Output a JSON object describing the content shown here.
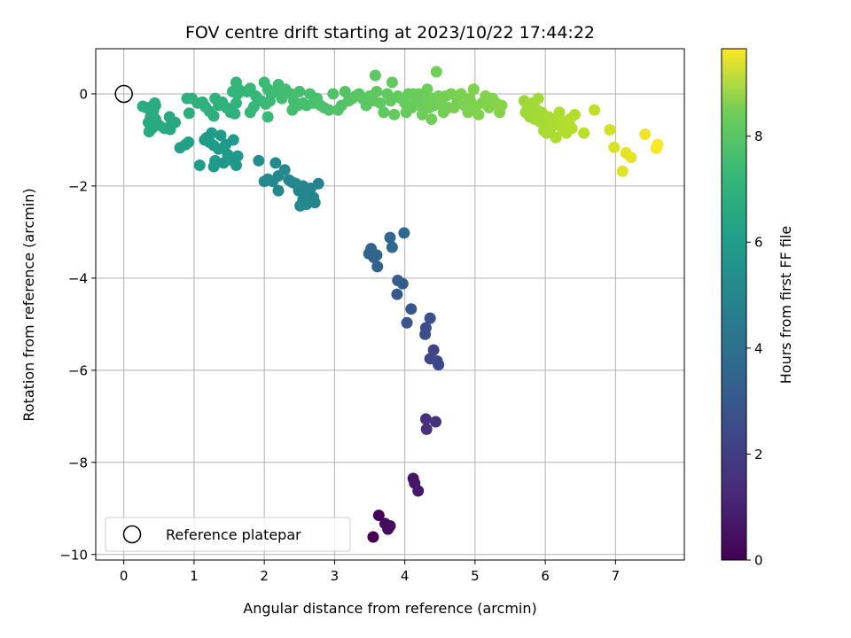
{
  "chart_data": {
    "type": "scatter",
    "title": "FOV centre drift starting at 2023/10/22 17:44:22",
    "xlabel": "Angular distance from reference (arcmin)",
    "ylabel": "Rotation from reference (arcmin)",
    "xlim": [
      -0.4,
      7.98
    ],
    "ylim": [
      -10.12,
      0.98
    ],
    "xticks": [
      0,
      1,
      2,
      3,
      4,
      5,
      6,
      7
    ],
    "yticks": [
      0,
      -2,
      -4,
      -6,
      -8,
      -10
    ],
    "grid": true,
    "legend": {
      "placement": "lower-left",
      "label": "Reference platepar"
    },
    "reference_point": {
      "x": 0,
      "y": 0
    },
    "colorbar": {
      "label": "Hours from first FF file",
      "min": 0,
      "max": 9.65,
      "ticks": [
        0,
        2,
        4,
        6,
        8
      ],
      "colormap": "viridis"
    },
    "points": [
      [
        3.55,
        -9.62,
        0.0
      ],
      [
        3.63,
        -9.15,
        0.15
      ],
      [
        3.72,
        -9.33,
        0.25
      ],
      [
        3.76,
        -9.45,
        0.3
      ],
      [
        3.79,
        -9.38,
        0.35
      ],
      [
        4.12,
        -8.35,
        0.55
      ],
      [
        4.14,
        -8.45,
        0.6
      ],
      [
        4.19,
        -8.62,
        0.65
      ],
      [
        4.3,
        -7.06,
        1.3
      ],
      [
        4.31,
        -7.28,
        1.35
      ],
      [
        4.44,
        -7.12,
        1.4
      ],
      [
        4.36,
        -5.75,
        2.0
      ],
      [
        4.41,
        -5.56,
        1.95
      ],
      [
        4.46,
        -5.8,
        2.05
      ],
      [
        4.48,
        -5.88,
        2.1
      ],
      [
        4.3,
        -5.08,
        2.3
      ],
      [
        4.29,
        -5.22,
        2.35
      ],
      [
        4.36,
        -4.87,
        2.4
      ],
      [
        4.03,
        -4.97,
        2.55
      ],
      [
        4.09,
        -4.67,
        2.6
      ],
      [
        3.89,
        -4.35,
        2.7
      ],
      [
        3.9,
        -4.05,
        2.75
      ],
      [
        3.97,
        -4.12,
        2.8
      ],
      [
        3.49,
        -3.47,
        3.0
      ],
      [
        3.52,
        -3.36,
        3.05
      ],
      [
        3.56,
        -3.55,
        3.05
      ],
      [
        3.6,
        -3.5,
        3.1
      ],
      [
        3.61,
        -3.75,
        3.05
      ],
      [
        3.79,
        -3.12,
        3.15
      ],
      [
        3.82,
        -3.33,
        3.2
      ],
      [
        3.99,
        -3.02,
        3.2
      ],
      [
        2.49,
        -2.1,
        4.4
      ],
      [
        2.55,
        -2.3,
        4.45
      ],
      [
        2.6,
        -2.4,
        4.5
      ],
      [
        2.62,
        -2.15,
        4.45
      ],
      [
        2.66,
        -2.05,
        4.35
      ],
      [
        2.7,
        -2.25,
        4.4
      ],
      [
        2.72,
        -2.36,
        4.4
      ],
      [
        2.77,
        -1.95,
        4.3
      ],
      [
        2.55,
        -2.0,
        4.4
      ],
      [
        2.4,
        -1.92,
        4.4
      ],
      [
        2.35,
        -1.87,
        4.45
      ],
      [
        2.2,
        -1.78,
        4.55
      ],
      [
        2.12,
        -1.9,
        4.55
      ],
      [
        2.05,
        -1.85,
        4.6
      ],
      [
        2.0,
        -1.9,
        4.6
      ],
      [
        2.2,
        -2.1,
        4.55
      ],
      [
        2.16,
        -1.5,
        4.65
      ],
      [
        2.29,
        -1.65,
        4.6
      ],
      [
        2.45,
        -1.95,
        4.5
      ],
      [
        2.51,
        -2.43,
        4.5
      ],
      [
        1.92,
        -1.45,
        4.8
      ],
      [
        1.15,
        -1.0,
        5.3
      ],
      [
        1.22,
        -1.05,
        5.3
      ],
      [
        1.28,
        -1.12,
        5.25
      ],
      [
        1.35,
        -1.2,
        5.25
      ],
      [
        1.3,
        -1.45,
        5.2
      ],
      [
        1.42,
        -1.5,
        5.15
      ],
      [
        1.48,
        -1.32,
        5.2
      ],
      [
        1.55,
        -1.45,
        5.15
      ],
      [
        1.6,
        -1.55,
        5.1
      ],
      [
        1.62,
        -1.35,
        5.1
      ],
      [
        1.38,
        -0.9,
        5.3
      ],
      [
        1.28,
        -1.58,
        5.2
      ],
      [
        1.18,
        -0.95,
        5.35
      ],
      [
        1.08,
        -1.55,
        5.35
      ],
      [
        1.56,
        -1.0,
        5.2
      ],
      [
        0.92,
        -1.05,
        5.5
      ],
      [
        0.88,
        -1.1,
        5.5
      ],
      [
        0.8,
        -1.17,
        5.5
      ],
      [
        1.45,
        -1.1,
        5.25
      ],
      [
        1.25,
        -0.85,
        5.3
      ],
      [
        0.27,
        -0.27,
        5.9
      ],
      [
        0.32,
        -0.3,
        5.9
      ],
      [
        0.4,
        -0.28,
        5.92
      ],
      [
        0.45,
        -0.25,
        5.92
      ],
      [
        0.42,
        -0.37,
        5.9
      ],
      [
        0.38,
        -0.5,
        5.88
      ],
      [
        0.45,
        -0.55,
        5.88
      ],
      [
        0.35,
        -0.62,
        5.88
      ],
      [
        0.4,
        -0.75,
        5.85
      ],
      [
        0.5,
        -0.68,
        5.85
      ],
      [
        0.65,
        -0.5,
        5.8
      ],
      [
        0.68,
        -0.65,
        5.8
      ],
      [
        0.73,
        -0.62,
        5.8
      ],
      [
        0.66,
        -0.77,
        5.8
      ],
      [
        0.36,
        -0.82,
        5.85
      ],
      [
        0.44,
        -0.2,
        5.92
      ],
      [
        0.58,
        -0.75,
        5.82
      ],
      [
        0.9,
        -0.1,
        6.1
      ],
      [
        0.97,
        -0.1,
        6.12
      ],
      [
        0.93,
        -0.42,
        6.05
      ],
      [
        1.05,
        -0.2,
        6.15
      ],
      [
        1.12,
        -0.18,
        6.15
      ],
      [
        1.16,
        -0.28,
        6.15
      ],
      [
        1.22,
        -0.38,
        6.12
      ],
      [
        1.28,
        -0.48,
        6.1
      ],
      [
        1.35,
        -0.25,
        6.15
      ],
      [
        1.4,
        -0.18,
        6.2
      ],
      [
        1.46,
        -0.3,
        6.2
      ],
      [
        1.52,
        -0.4,
        6.2
      ],
      [
        1.3,
        -0.1,
        6.2
      ],
      [
        1.58,
        -0.43,
        6.18
      ],
      [
        1.6,
        -0.2,
        6.25
      ],
      [
        1.62,
        0.0,
        6.3
      ],
      [
        1.55,
        0.05,
        6.3
      ],
      [
        1.65,
        0.08,
        6.35
      ],
      [
        1.6,
        0.25,
        6.4
      ],
      [
        1.75,
        0.05,
        6.4
      ],
      [
        1.8,
        0.12,
        6.45
      ],
      [
        1.88,
        -0.05,
        6.45
      ],
      [
        1.8,
        -0.4,
        6.4
      ],
      [
        1.85,
        -0.28,
        6.42
      ],
      [
        1.95,
        -0.15,
        6.48
      ],
      [
        2.0,
        0.25,
        6.55
      ],
      [
        2.05,
        0.1,
        6.55
      ],
      [
        2.1,
        0.0,
        6.58
      ],
      [
        2.08,
        -0.15,
        6.55
      ],
      [
        2.15,
        0.05,
        6.6
      ],
      [
        2.2,
        0.2,
        6.62
      ],
      [
        2.05,
        -0.5,
        6.5
      ],
      [
        2.02,
        -0.22,
        6.55
      ],
      [
        2.25,
        -0.1,
        6.65
      ],
      [
        2.3,
        0.1,
        6.65
      ],
      [
        2.38,
        0.0,
        6.7
      ],
      [
        2.42,
        -0.15,
        6.72
      ],
      [
        2.5,
        0.05,
        6.75
      ],
      [
        2.55,
        -0.2,
        6.75
      ],
      [
        2.6,
        -0.25,
        6.78
      ],
      [
        2.48,
        -0.25,
        6.75
      ],
      [
        2.4,
        -0.35,
        6.72
      ],
      [
        2.65,
        0.0,
        6.8
      ],
      [
        2.7,
        -0.2,
        6.82
      ],
      [
        2.75,
        -0.1,
        6.85
      ],
      [
        2.8,
        -0.25,
        6.88
      ],
      [
        2.85,
        -0.3,
        6.9
      ],
      [
        2.92,
        -0.35,
        6.92
      ],
      [
        2.98,
        0.0,
        6.95
      ],
      [
        3.05,
        -0.35,
        6.98
      ],
      [
        3.1,
        -0.25,
        7.0
      ],
      [
        3.15,
        0.05,
        7.02
      ],
      [
        3.2,
        -0.15,
        7.05
      ],
      [
        3.25,
        -0.1,
        7.05
      ],
      [
        3.3,
        -0.05,
        7.08
      ],
      [
        3.35,
        0.0,
        7.1
      ],
      [
        3.4,
        -0.1,
        7.12
      ],
      [
        3.45,
        -0.25,
        7.14
      ],
      [
        3.5,
        -0.05,
        7.15
      ],
      [
        3.55,
        -0.15,
        7.18
      ],
      [
        3.58,
        0.4,
        7.2
      ],
      [
        3.6,
        0.05,
        7.2
      ],
      [
        3.65,
        -0.2,
        7.22
      ],
      [
        3.7,
        -0.4,
        7.22
      ],
      [
        3.75,
        0.0,
        7.25
      ],
      [
        3.8,
        -0.15,
        7.28
      ],
      [
        3.82,
        0.25,
        7.28
      ],
      [
        3.85,
        -0.45,
        7.3
      ],
      [
        3.9,
        -0.05,
        7.3
      ],
      [
        3.95,
        -0.1,
        7.32
      ],
      [
        4.0,
        -0.2,
        7.35
      ],
      [
        4.02,
        -0.4,
        7.35
      ],
      [
        4.05,
        0.0,
        7.38
      ],
      [
        4.1,
        -0.3,
        7.38
      ],
      [
        4.12,
        0.0,
        7.4
      ],
      [
        4.15,
        -0.1,
        7.4
      ],
      [
        4.2,
        0.0,
        7.42
      ],
      [
        4.22,
        -0.25,
        7.42
      ],
      [
        4.25,
        -0.45,
        7.45
      ],
      [
        4.3,
        -0.1,
        7.45
      ],
      [
        4.32,
        0.1,
        7.48
      ],
      [
        4.35,
        -0.3,
        7.48
      ],
      [
        4.38,
        -0.55,
        7.5
      ],
      [
        4.4,
        -0.1,
        7.5
      ],
      [
        4.42,
        -0.25,
        7.52
      ],
      [
        4.45,
        0.48,
        7.55
      ],
      [
        4.48,
        -0.05,
        7.55
      ],
      [
        4.52,
        -0.2,
        7.58
      ],
      [
        4.55,
        -0.4,
        7.58
      ],
      [
        4.58,
        -0.05,
        7.6
      ],
      [
        4.62,
        -0.3,
        7.6
      ],
      [
        4.66,
        0.0,
        7.62
      ],
      [
        4.7,
        -0.3,
        7.65
      ],
      [
        4.75,
        -0.15,
        7.65
      ],
      [
        4.8,
        0.0,
        7.68
      ],
      [
        4.85,
        -0.25,
        7.7
      ],
      [
        4.9,
        -0.4,
        7.7
      ],
      [
        4.92,
        -0.1,
        7.72
      ],
      [
        4.95,
        -0.2,
        7.72
      ],
      [
        4.98,
        0.1,
        7.75
      ],
      [
        5.0,
        -0.3,
        7.75
      ],
      [
        5.05,
        -0.45,
        7.78
      ],
      [
        5.1,
        -0.2,
        7.78
      ],
      [
        5.15,
        -0.05,
        7.8
      ],
      [
        5.2,
        -0.3,
        7.8
      ],
      [
        5.25,
        -0.1,
        7.82
      ],
      [
        5.3,
        -0.2,
        7.85
      ],
      [
        5.35,
        -0.4,
        7.85
      ],
      [
        5.38,
        -0.25,
        7.88
      ],
      [
        5.7,
        -0.15,
        8.2
      ],
      [
        5.72,
        -0.4,
        8.22
      ],
      [
        5.75,
        -0.25,
        8.22
      ],
      [
        5.78,
        -0.5,
        8.25
      ],
      [
        5.8,
        -0.3,
        8.25
      ],
      [
        5.82,
        -0.2,
        8.28
      ],
      [
        5.85,
        -0.55,
        8.28
      ],
      [
        5.88,
        -0.35,
        8.3
      ],
      [
        5.9,
        -0.1,
        8.3
      ],
      [
        5.92,
        -0.6,
        8.32
      ],
      [
        5.95,
        -0.4,
        8.32
      ],
      [
        5.98,
        -0.8,
        8.35
      ],
      [
        6.0,
        -0.7,
        8.35
      ],
      [
        6.02,
        -0.85,
        8.38
      ],
      [
        6.05,
        -0.5,
        8.38
      ],
      [
        6.08,
        -0.75,
        8.4
      ],
      [
        6.1,
        -0.6,
        8.4
      ],
      [
        6.15,
        -0.95,
        8.42
      ],
      [
        6.18,
        -0.55,
        8.45
      ],
      [
        6.2,
        -0.4,
        8.45
      ],
      [
        6.22,
        -0.7,
        8.48
      ],
      [
        6.25,
        -0.8,
        8.48
      ],
      [
        6.28,
        -0.6,
        8.5
      ],
      [
        6.3,
        -0.85,
        8.5
      ],
      [
        6.32,
        -0.7,
        8.52
      ],
      [
        6.35,
        -0.55,
        8.55
      ],
      [
        6.38,
        -0.75,
        8.55
      ],
      [
        6.42,
        -0.45,
        8.58
      ],
      [
        6.55,
        -0.85,
        8.65
      ],
      [
        6.7,
        -0.35,
        8.75
      ],
      [
        6.92,
        -0.78,
        9.0
      ],
      [
        6.98,
        -1.16,
        9.1
      ],
      [
        7.1,
        -1.68,
        9.2
      ],
      [
        7.15,
        -1.28,
        9.25
      ],
      [
        7.22,
        -1.38,
        9.3
      ],
      [
        7.42,
        -0.88,
        9.45
      ],
      [
        7.58,
        -1.18,
        9.55
      ],
      [
        7.6,
        -1.1,
        9.6
      ]
    ]
  }
}
